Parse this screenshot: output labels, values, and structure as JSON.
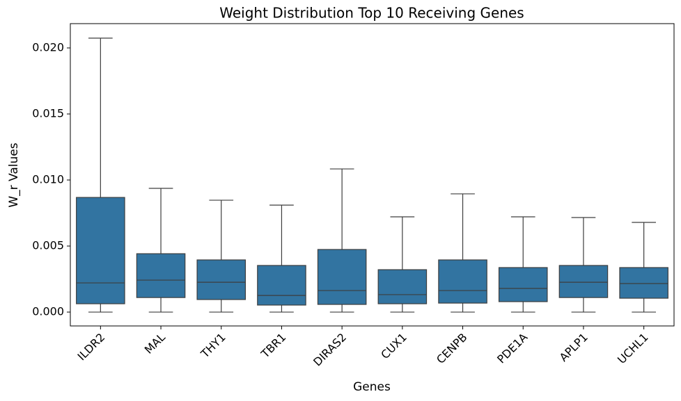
{
  "chart_data": {
    "type": "box",
    "title": "Weight Distribution Top 10 Receiving Genes",
    "xlabel": "Genes",
    "ylabel": "W_r Values",
    "categories": [
      "ILDR2",
      "MAL",
      "THY1",
      "TBR1",
      "DIRAS2",
      "CUX1",
      "CENPB",
      "PDE1A",
      "APLP1",
      "UCHL1"
    ],
    "min": [
      0,
      0,
      0,
      0,
      0,
      0,
      0,
      0,
      0,
      0
    ],
    "q1": [
      0.00063,
      0.0011,
      0.00095,
      0.00053,
      0.00058,
      0.00063,
      0.00068,
      0.00079,
      0.0011,
      0.00105
    ],
    "median": [
      0.00221,
      0.00242,
      0.00226,
      0.00126,
      0.00163,
      0.00132,
      0.00163,
      0.00179,
      0.00226,
      0.00216
    ],
    "q3": [
      0.00868,
      0.00442,
      0.00395,
      0.00353,
      0.00474,
      0.00321,
      0.00395,
      0.00337,
      0.00353,
      0.00337
    ],
    "max": [
      0.02074,
      0.00937,
      0.00847,
      0.0081,
      0.01084,
      0.00721,
      0.00895,
      0.00721,
      0.00716,
      0.00679
    ],
    "color": "#3274a1",
    "ylim": [
      -0.00105,
      0.02184
    ],
    "yticks": [
      {
        "value": 0,
        "label": "0.000"
      },
      {
        "value": 0.005,
        "label": "0.005"
      },
      {
        "value": 0.01,
        "label": "0.010"
      },
      {
        "value": 0.015,
        "label": "0.015"
      },
      {
        "value": 0.02,
        "label": "0.020"
      }
    ]
  }
}
